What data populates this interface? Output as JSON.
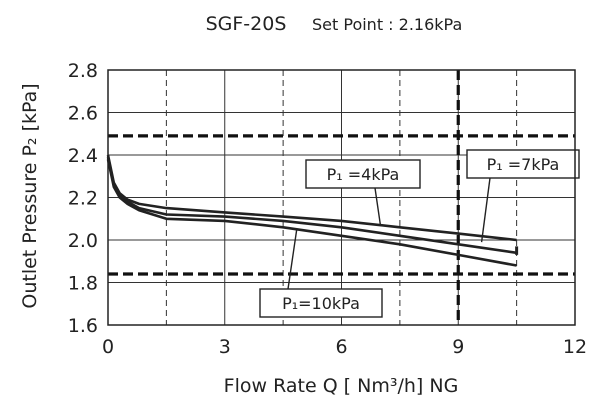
{
  "chart_data": {
    "type": "line",
    "title": "SGF-20S",
    "subtitle": "Set Point : 2.16kPa",
    "xlabel": "Flow Rate  Q [ Nm³/h] NG",
    "ylabel": "Outlet Pressure P₂ [kPa]",
    "xlim": [
      0,
      12
    ],
    "ylim": [
      1.6,
      2.8
    ],
    "xticks": [
      "0",
      "3",
      "6",
      "9",
      "12"
    ],
    "yticks": [
      "1.6",
      "1.8",
      "2.0",
      "2.2",
      "2.4",
      "2.6",
      "2.8"
    ],
    "x_minor_dashed": [
      1.5,
      4.5,
      7.5,
      10.5
    ],
    "grid": true,
    "limit_lines": {
      "upper": 2.49,
      "lower": 1.84,
      "vertical": 9.0
    },
    "series": [
      {
        "name": "P₁=4kPa",
        "x": [
          0,
          0.15,
          0.3,
          0.5,
          0.8,
          1.5,
          3,
          4.5,
          6,
          7.5,
          9,
          10.5
        ],
        "y": [
          2.4,
          2.27,
          2.22,
          2.19,
          2.17,
          2.15,
          2.13,
          2.11,
          2.09,
          2.06,
          2.03,
          2.0
        ]
      },
      {
        "name": "P₁=7kPa",
        "x": [
          0,
          0.15,
          0.3,
          0.5,
          0.8,
          1.5,
          3,
          4.5,
          6,
          7.5,
          9,
          10.5
        ],
        "y": [
          2.39,
          2.26,
          2.21,
          2.18,
          2.15,
          2.12,
          2.11,
          2.09,
          2.06,
          2.02,
          1.98,
          1.94
        ]
      },
      {
        "name": "P₁=10kPa",
        "x": [
          0,
          0.15,
          0.3,
          0.5,
          0.8,
          1.5,
          3,
          4.5,
          6,
          7.5,
          9,
          10.5
        ],
        "y": [
          2.38,
          2.25,
          2.2,
          2.17,
          2.14,
          2.1,
          2.09,
          2.06,
          2.02,
          1.98,
          1.93,
          1.88
        ]
      }
    ],
    "end_marker": {
      "x": 10.5,
      "y": [
        1.97,
        1.93
      ]
    },
    "annotations": [
      {
        "text": "P₁ =4kPa",
        "series": "P₁=4kPa",
        "point": [
          7.0,
          2.07
        ]
      },
      {
        "text": "P₁ =7kPa",
        "series": "P₁=7kPa",
        "point": [
          9.6,
          1.99
        ]
      },
      {
        "text": "P₁=10kPa",
        "series": "P₁=10kPa",
        "point": [
          4.85,
          2.05
        ]
      }
    ],
    "colors": {
      "lines": "#222222",
      "grid": "#333333",
      "limit_lines": "#111111"
    }
  }
}
